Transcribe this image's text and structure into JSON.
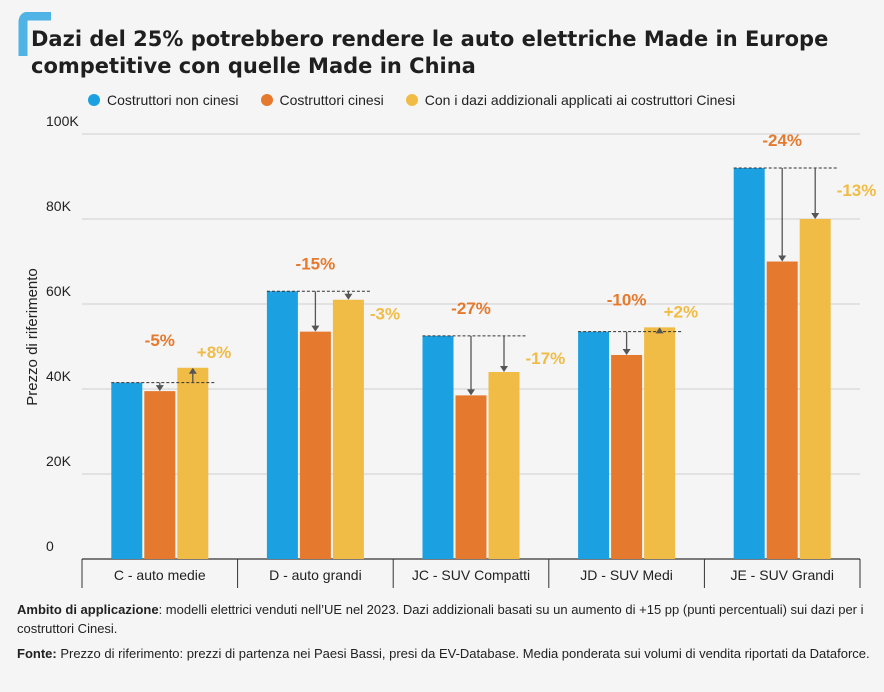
{
  "title_line1": "Dazi del 25% potrebbero rendere le auto elettriche Made in Europe",
  "title_line2": "competitive con quelle Made in China",
  "colors": {
    "non_cinesi": "#1ba1e2",
    "cinesi": "#e57a2e",
    "dazi": "#f0bc45",
    "accent": "#4fb3e6"
  },
  "chart_data": {
    "type": "bar",
    "categories": [
      "C - auto medie",
      "D - auto grandi",
      "JC - SUV Compatti",
      "JD - SUV Medi",
      "JE - SUV Grandi"
    ],
    "series": [
      {
        "name": "Costruttori non cinesi",
        "values": [
          41500,
          63000,
          52500,
          53500,
          92000
        ]
      },
      {
        "name": "Costruttori cinesi",
        "values": [
          39500,
          53500,
          38500,
          48000,
          70000
        ]
      },
      {
        "name": "Con i dazi addizionali applicati ai costruttori Cinesi",
        "values": [
          45000,
          61000,
          44000,
          54500,
          80000
        ]
      }
    ],
    "annotations_cinesi": [
      "-5%",
      "-15%",
      "-27%",
      "-10%",
      "-24%"
    ],
    "annotations_dazi": [
      "+8%",
      "-3%",
      "-17%",
      "+2%",
      "-13%"
    ],
    "ylabel": "Prezzo di riferimento",
    "ytick_labels": [
      "0",
      "20K",
      "40K",
      "60K",
      "80K",
      "100K"
    ],
    "ylim": [
      0,
      100000
    ],
    "grid": true,
    "legend_position": "top"
  },
  "notes": {
    "scope_label": "Ambito di applicazione",
    "scope_text": ": modelli elettrici venduti nell’UE nel 2023. Dazi addizionali basati su un aumento di +15 pp (punti percentuali) sui dazi per i costruttori Cinesi.",
    "source_label": "Fonte:",
    "source_text": " Prezzo di riferimento: prezzi di partenza nei Paesi Bassi, presi da EV-Database. Media ponderata sui volumi di vendita riportati da Dataforce."
  }
}
